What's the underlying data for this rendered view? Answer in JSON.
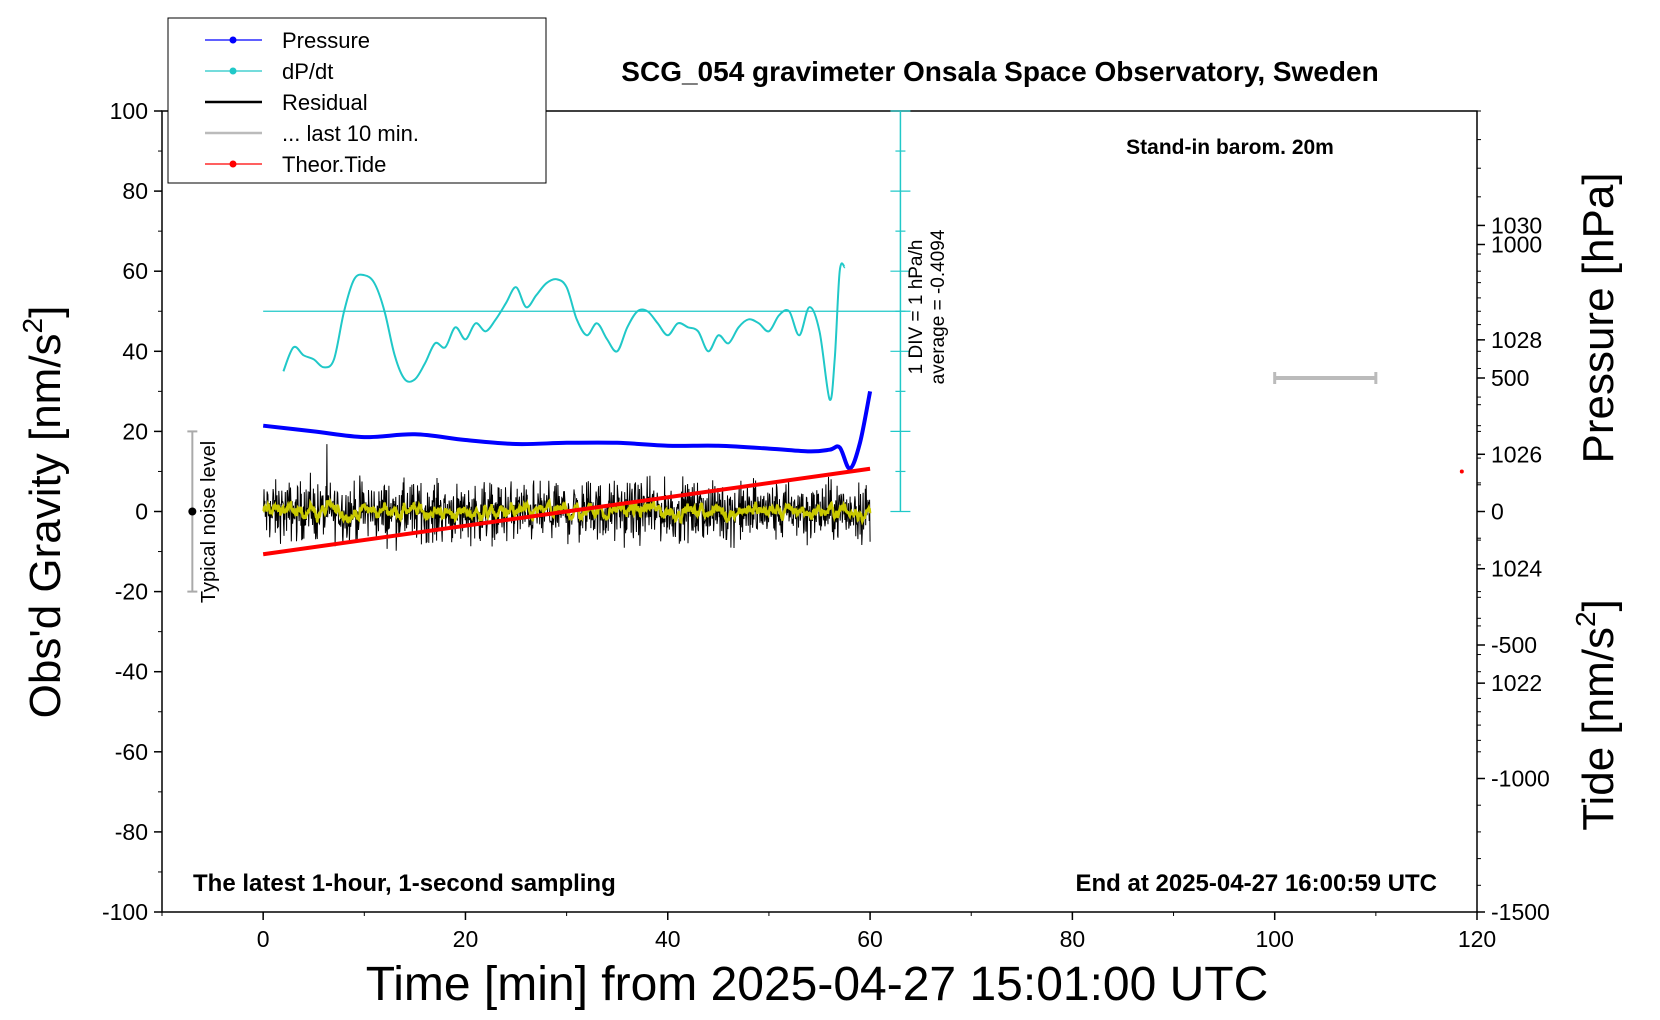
{
  "chart_data": {
    "type": "line",
    "title": "SCG_054 gravimeter Onsala Space Observatory, Sweden",
    "xlabel": "Time [min] from 2025-04-27 15:01:00 UTC",
    "ylabel_left": "Obs'd Gravity [nm/s",
    "ylabel_right_pressure": "Pressure [hPa]",
    "ylabel_right_tide": "Tide [nm/s",
    "unit_superscript": "2",
    "xlim": [
      -10,
      120
    ],
    "ylim_gravity": [
      -100,
      100
    ],
    "ylim_pressure": [
      1018,
      1032
    ],
    "ylim_tide": [
      -1500,
      1500
    ],
    "x_ticks": [
      "0",
      "20",
      "40",
      "60",
      "80",
      "100",
      "120"
    ],
    "gravity_ticks": [
      "-100",
      "-80",
      "-60",
      "-40",
      "-20",
      "0",
      "20",
      "40",
      "60",
      "80",
      "100"
    ],
    "pressure_ticks": [
      "1022",
      "1024",
      "1026",
      "1028",
      "1030"
    ],
    "tide_ticks": [
      "-1500",
      "-1000",
      "-500",
      "0",
      "500",
      "1000"
    ],
    "annotations": {
      "barometer": "Stand-in barom. 20m",
      "sampling": "The latest 1-hour, 1-second sampling",
      "end_time": "End at 2025-04-27 16:00:59 UTC",
      "noise": "Typical noise level",
      "div_scale": "1 DIV = 1 hPa/h",
      "average": "average = -0.4094"
    },
    "legend": [
      {
        "label": "Pressure",
        "color": "#0000ff"
      },
      {
        "label": "dP/dt",
        "color": "#20c8c8"
      },
      {
        "label": "Residual",
        "color": "#000000"
      },
      {
        "label": "... last 10 min.",
        "color": "#bbbbbb"
      },
      {
        "label": "Theor.Tide",
        "color": "#ff0000"
      }
    ],
    "series": {
      "pressure_hPa": {
        "x": [
          0,
          5,
          10,
          15,
          20,
          25,
          30,
          35,
          40,
          45,
          50,
          54,
          56,
          57,
          58,
          59,
          60
        ],
        "y": [
          1026.5,
          1026.4,
          1026.3,
          1026.35,
          1026.25,
          1026.18,
          1026.2,
          1026.2,
          1026.15,
          1026.15,
          1026.1,
          1026.05,
          1026.08,
          1026.12,
          1025.75,
          1026.2,
          1027.1
        ]
      },
      "dPdt_gravity_units": {
        "x": [
          2,
          3,
          4,
          5,
          6,
          7,
          8,
          9,
          10,
          11,
          12,
          13,
          14,
          15,
          16,
          17,
          18,
          19,
          20,
          21,
          22,
          23,
          24,
          25,
          26,
          27,
          28,
          29,
          30,
          31,
          32,
          33,
          34,
          35,
          36,
          37,
          38,
          39,
          40,
          41,
          42,
          43,
          44,
          45,
          46,
          47,
          48,
          49,
          50,
          51,
          52,
          53,
          54,
          55,
          56,
          56.5,
          57,
          57.5
        ],
        "y": [
          35,
          41,
          39,
          38,
          36,
          38,
          50,
          58,
          59,
          57,
          50,
          39,
          33,
          33,
          37,
          42,
          41,
          46,
          43,
          47,
          45,
          48,
          52,
          56,
          51,
          54,
          57,
          58,
          56,
          48,
          44,
          47,
          43,
          40,
          46,
          50,
          50,
          47,
          44,
          47,
          46,
          45,
          40,
          44,
          42,
          46,
          48,
          47,
          45,
          49,
          50,
          44,
          51,
          45,
          28,
          38,
          60,
          61
        ]
      },
      "residual_mean": 0,
      "residual_noise_amplitude": 6,
      "residual_x_range": [
        0,
        60
      ],
      "theoretical_tide": {
        "x": [
          0,
          60
        ],
        "y": [
          -160,
          160
        ],
        "extra_point": {
          "x": 118.5,
          "y": 150
        }
      },
      "last_10_min_bar": {
        "x": [
          100,
          110
        ],
        "tide_y": 500
      },
      "noise_level_bar": {
        "x": -7,
        "gravity_range": [
          -20,
          20
        ]
      },
      "dPdt_reference_line": 50,
      "dPdt_axis": {
        "x": 63,
        "range": [
          0,
          100
        ]
      }
    }
  }
}
